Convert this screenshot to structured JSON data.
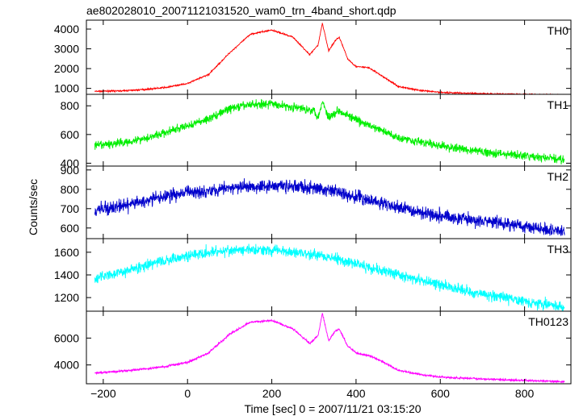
{
  "chart_data": {
    "type": "line",
    "title": "ae802028010_20071121031520_wam0_trn_4band_short.qdp",
    "xlabel": "Time [sec] 0 = 2007/11/21 03:15:20",
    "ylabel": "Counts/sec",
    "xlim": [
      -240,
      910
    ],
    "x_ticks": [
      -200,
      0,
      200,
      400,
      600,
      800
    ],
    "x_tick_labels": [
      "−200",
      "0",
      "200",
      "400",
      "600",
      "800"
    ],
    "panels": [
      {
        "label": "TH0",
        "color": "#ff0000",
        "ylim": [
          700,
          4450
        ],
        "y_ticks": [
          1000,
          2000,
          3000,
          4000
        ],
        "noise": 35,
        "x": [
          -220,
          -150,
          -100,
          -50,
          0,
          50,
          100,
          150,
          200,
          250,
          290,
          310,
          320,
          335,
          350,
          360,
          380,
          400,
          430,
          460,
          500,
          550,
          600,
          700,
          800,
          895
        ],
        "y": [
          850,
          880,
          950,
          1050,
          1250,
          1700,
          2800,
          3750,
          3950,
          3600,
          2700,
          3200,
          4300,
          2900,
          3400,
          3600,
          2500,
          2100,
          2050,
          1650,
          1100,
          900,
          800,
          730,
          700,
          650
        ]
      },
      {
        "label": "TH1",
        "color": "#00ee00",
        "ylim": [
          380,
          880
        ],
        "y_ticks": [
          400,
          600,
          800
        ],
        "noise": 28,
        "x": [
          -220,
          -150,
          -100,
          -50,
          0,
          50,
          100,
          150,
          200,
          250,
          300,
          310,
          320,
          335,
          360,
          400,
          450,
          500,
          600,
          700,
          800,
          895
        ],
        "y": [
          520,
          545,
          575,
          615,
          660,
          710,
          780,
          810,
          815,
          790,
          770,
          720,
          830,
          720,
          770,
          700,
          640,
          580,
          520,
          480,
          450,
          425
        ]
      },
      {
        "label": "TH2",
        "color": "#0000cc",
        "ylim": [
          545,
          920
        ],
        "y_ticks": [
          600,
          700,
          800,
          900
        ],
        "noise": 32,
        "x": [
          -220,
          -150,
          -100,
          -50,
          0,
          50,
          100,
          150,
          200,
          250,
          300,
          350,
          400,
          450,
          500,
          600,
          700,
          800,
          895
        ],
        "y": [
          690,
          715,
          740,
          765,
          785,
          795,
          805,
          815,
          820,
          815,
          805,
          790,
          760,
          735,
          705,
          665,
          635,
          610,
          580
        ]
      },
      {
        "label": "TH3",
        "color": "#00ffff",
        "ylim": [
          1080,
          1720
        ],
        "y_ticks": [
          1200,
          1400,
          1600
        ],
        "noise": 45,
        "x": [
          -220,
          -150,
          -100,
          -50,
          0,
          50,
          100,
          150,
          200,
          250,
          300,
          350,
          400,
          450,
          500,
          600,
          700,
          800,
          895
        ],
        "y": [
          1370,
          1430,
          1480,
          1530,
          1570,
          1600,
          1615,
          1620,
          1620,
          1605,
          1580,
          1545,
          1500,
          1450,
          1400,
          1310,
          1230,
          1170,
          1110
        ]
      },
      {
        "label": "TH0123",
        "color": "#ff00ff",
        "ylim": [
          2600,
          8000
        ],
        "y_ticks": [
          4000,
          6000
        ],
        "noise": 70,
        "x": [
          -220,
          -150,
          -100,
          -50,
          0,
          50,
          100,
          150,
          200,
          250,
          290,
          310,
          320,
          335,
          350,
          360,
          380,
          400,
          430,
          460,
          500,
          550,
          600,
          700,
          800,
          895
        ],
        "y": [
          3400,
          3550,
          3700,
          3900,
          4200,
          4900,
          6300,
          7200,
          7300,
          6700,
          5600,
          6200,
          7850,
          5800,
          6500,
          6700,
          5400,
          4900,
          4700,
          4300,
          3600,
          3300,
          3100,
          2950,
          2850,
          2750
        ]
      }
    ]
  }
}
